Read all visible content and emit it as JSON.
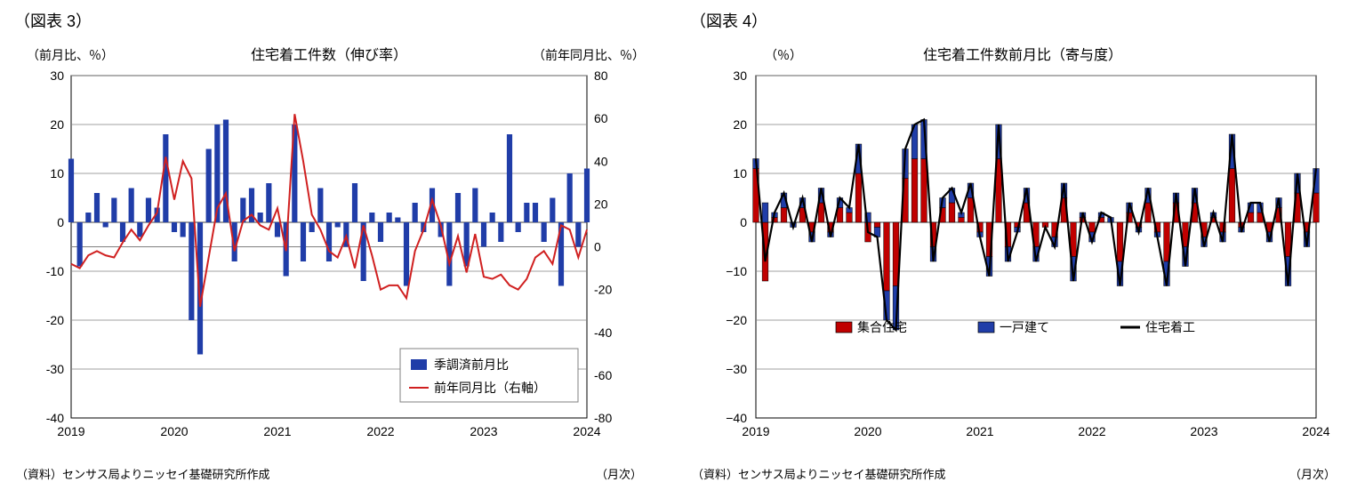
{
  "chart3": {
    "figLabel": "（図表 3）",
    "title": "住宅着工件数（伸び率）",
    "leftAxisTitle": "（前月比、％）",
    "rightAxisTitle": "（前年同月比、％）",
    "xAxisNote": "（月次）",
    "sourceNote": "（資料）センサス局よりニッセイ基礎研究所作成",
    "xYears": [
      "2019",
      "2020",
      "2021",
      "2022",
      "2023",
      "2024"
    ],
    "nPoints": 61,
    "leftY": {
      "min": -40,
      "max": 30,
      "step": 10
    },
    "rightY": {
      "min": -80,
      "max": 80,
      "step": 20
    },
    "bars": [
      13,
      -9,
      2,
      6,
      -1,
      5,
      -4,
      7,
      -3,
      5,
      3,
      18,
      -2,
      -3,
      -20,
      -27,
      15,
      20,
      21,
      -8,
      5,
      7,
      2,
      8,
      -3,
      -11,
      20,
      -8,
      -2,
      7,
      -8,
      -1,
      -5,
      8,
      -12,
      2,
      -4,
      2,
      1,
      -13,
      4,
      -2,
      7,
      -3,
      -13,
      6,
      -9,
      7,
      -5,
      2,
      -4,
      18,
      -2,
      4,
      4,
      -4,
      5,
      -13,
      10,
      -5,
      11
    ],
    "line": [
      -8,
      -10,
      -4,
      -2,
      -4,
      -5,
      2,
      8,
      3,
      10,
      16,
      42,
      22,
      40,
      32,
      -28,
      -5,
      18,
      25,
      -2,
      12,
      15,
      10,
      8,
      18,
      -2,
      62,
      40,
      15,
      8,
      -2,
      -5,
      5,
      -10,
      10,
      -4,
      -20,
      -18,
      -18,
      -24,
      -2,
      8,
      22,
      10,
      -8,
      5,
      -12,
      6,
      -14,
      -15,
      -13,
      -18,
      -20,
      -15,
      -5,
      -2,
      -8,
      10,
      8,
      -5,
      8
    ],
    "barColor": "#203da8",
    "lineColor": "#d02020",
    "gridColor": "#808080",
    "legend": {
      "bar": "季調済前月比",
      "line": "前年同月比（右軸）"
    }
  },
  "chart4": {
    "figLabel": "（図表 4）",
    "title": "住宅着工件数前月比（寄与度）",
    "yAxisTitle": "（％）",
    "xAxisNote": "（月次）",
    "sourceNote": "（資料）センサス局よりニッセイ基礎研究所作成",
    "xYears": [
      "2019",
      "2020",
      "2021",
      "2022",
      "2023",
      "2024"
    ],
    "nPoints": 61,
    "y": {
      "min": -40,
      "max": 30,
      "step": 10
    },
    "single": [
      2,
      4,
      1,
      3,
      -1,
      2,
      -2,
      3,
      -1,
      2,
      1,
      6,
      2,
      -2,
      -6,
      -9,
      6,
      7,
      8,
      -3,
      2,
      3,
      1,
      3,
      -1,
      -4,
      7,
      -3,
      -1,
      3,
      -3,
      0,
      -2,
      3,
      -5,
      1,
      -2,
      1,
      1,
      -5,
      2,
      -1,
      3,
      -1,
      -5,
      2,
      -4,
      3,
      -2,
      1,
      -2,
      7,
      -1,
      2,
      2,
      -2,
      2,
      -6,
      4,
      -3,
      5
    ],
    "multi": [
      11,
      -12,
      1,
      3,
      0,
      3,
      -2,
      4,
      -2,
      3,
      2,
      10,
      -4,
      -1,
      -14,
      -13,
      9,
      13,
      13,
      -5,
      3,
      4,
      1,
      5,
      -2,
      -7,
      13,
      -5,
      -1,
      4,
      -5,
      -1,
      -3,
      5,
      -7,
      1,
      -2,
      1,
      0,
      -8,
      2,
      -1,
      4,
      -2,
      -8,
      4,
      -5,
      4,
      -3,
      1,
      -2,
      11,
      -1,
      2,
      2,
      -2,
      3,
      -7,
      6,
      -2,
      6
    ],
    "barColor1": "#c00000",
    "barColor2": "#203da8",
    "lineColor": "#000000",
    "legend": {
      "multi": "集合住宅",
      "single": "一戸建て",
      "line": "住宅着工"
    }
  }
}
